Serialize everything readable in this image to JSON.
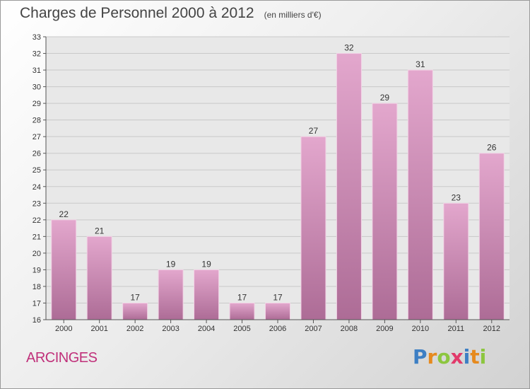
{
  "header": {
    "title": "Charges de Personnel 2000 à 2012",
    "subtitle": "(en milliers d'€)"
  },
  "place_name": "ARCINGES",
  "logo": {
    "text": "Proxiti",
    "letters": [
      "P",
      "r",
      "o",
      "x",
      "i",
      "t",
      "i"
    ],
    "letter_colors": [
      "#3d7fc4",
      "#e68a1e",
      "#8cc63f",
      "#e23a6b",
      "#3d7fc4",
      "#e68a1e",
      "#8cc63f"
    ]
  },
  "chart_data": {
    "type": "bar",
    "title": "Charges de Personnel 2000 à 2012",
    "categories": [
      "2000",
      "2001",
      "2002",
      "2003",
      "2004",
      "2005",
      "2006",
      "2007",
      "2008",
      "2009",
      "2010",
      "2011",
      "2012"
    ],
    "values": [
      22,
      21,
      17,
      19,
      19,
      17,
      17,
      27,
      32,
      29,
      31,
      23,
      26
    ],
    "ylim": [
      16,
      33
    ],
    "yticks": [
      16,
      17,
      18,
      19,
      20,
      21,
      22,
      23,
      24,
      25,
      26,
      27,
      28,
      29,
      30,
      31,
      32,
      33
    ],
    "grid": true,
    "bar_color_top": "#e3a7cd",
    "bar_color_bottom": "#ad6c96",
    "plot_background": "#e8e8e8"
  }
}
